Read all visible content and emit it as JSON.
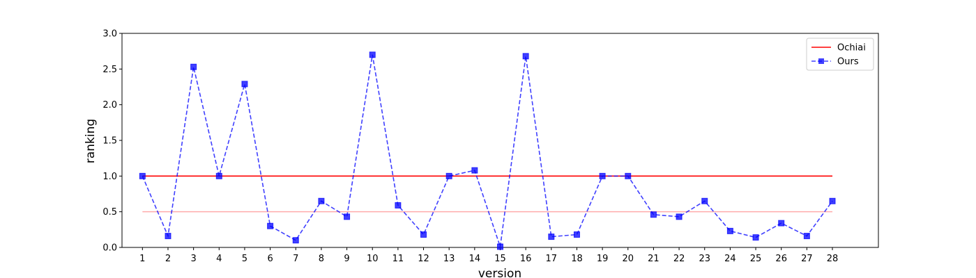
{
  "chart_data": {
    "type": "line",
    "title": "",
    "xlabel": "version",
    "ylabel": "ranking",
    "x": [
      1,
      2,
      3,
      4,
      5,
      6,
      7,
      8,
      9,
      10,
      11,
      12,
      13,
      14,
      15,
      16,
      17,
      18,
      19,
      20,
      21,
      22,
      23,
      24,
      25,
      26,
      27,
      28
    ],
    "ylim": [
      0,
      3.0
    ],
    "yticks": [
      "0.0",
      "0.5",
      "1.0",
      "1.5",
      "2.0",
      "2.5",
      "3.0"
    ],
    "grid": false,
    "legend_position": "top-right",
    "series": [
      {
        "name": "Ochiai",
        "style": "solid",
        "color": "#ff0000",
        "values": [
          1,
          1,
          1,
          1,
          1,
          1,
          1,
          1,
          1,
          1,
          1,
          1,
          1,
          1,
          1,
          1,
          1,
          1,
          1,
          1,
          1,
          1,
          1,
          1,
          1,
          1,
          1,
          1
        ]
      },
      {
        "name": "Ours",
        "style": "dashed",
        "marker": "square",
        "color": "#0000ff",
        "values": [
          1.0,
          0.16,
          2.53,
          1.0,
          2.29,
          0.3,
          0.1,
          0.65,
          0.43,
          2.7,
          0.59,
          0.18,
          1.0,
          1.08,
          0.01,
          2.68,
          0.15,
          0.18,
          1.0,
          1.0,
          0.46,
          0.43,
          0.65,
          0.23,
          0.14,
          0.34,
          0.16,
          0.65
        ]
      }
    ],
    "reference_line": {
      "y": 0.5,
      "color": "#ffaaaa"
    }
  }
}
